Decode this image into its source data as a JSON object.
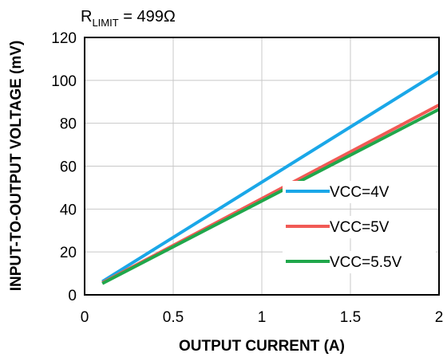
{
  "chart_data": {
    "type": "line",
    "subtitle": {
      "base": "R",
      "subscript": "LIMIT",
      "rest": " = 499Ω"
    },
    "xlabel": "OUTPUT CURRENT (A)",
    "ylabel": "INPUT-TO-OUTPUT VOLTAGE (mV)",
    "xlim": [
      0,
      2
    ],
    "ylim": [
      0,
      120
    ],
    "x_ticks": [
      0,
      0.5,
      1,
      1.5,
      2
    ],
    "y_ticks": [
      0,
      20,
      40,
      60,
      80,
      100,
      120
    ],
    "x_tick_labels": [
      "0",
      "0.5",
      "1",
      "1.5",
      "2"
    ],
    "y_tick_labels": [
      "0",
      "20",
      "40",
      "60",
      "80",
      "100",
      "120"
    ],
    "grid": true,
    "legend_position": "lower-right",
    "series": [
      {
        "name": "VCC=4V",
        "color": "#1aa7e8",
        "x": [
          0.1,
          2.0
        ],
        "y": [
          6.2,
          104
        ]
      },
      {
        "name": "VCC=5V",
        "color": "#f15a55",
        "x": [
          0.1,
          2.0
        ],
        "y": [
          5.6,
          88.5
        ]
      },
      {
        "name": "VCC=5.5V",
        "color": "#20a74b",
        "x": [
          0.1,
          2.0
        ],
        "y": [
          5.3,
          86.5
        ]
      }
    ]
  }
}
